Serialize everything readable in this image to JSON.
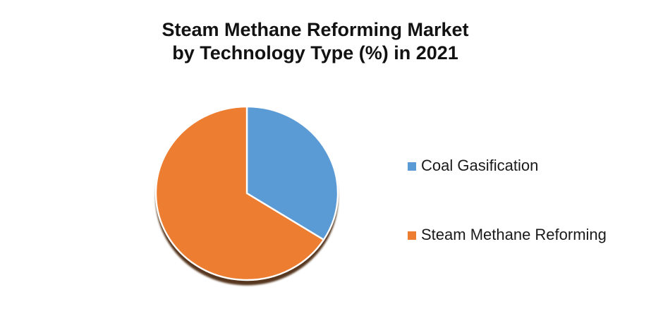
{
  "title": "Steam Methane Reforming Market\nby Technology Type (%) in 2021",
  "chart_data": {
    "type": "pie",
    "title": "Steam Methane Reforming Market by Technology Type (%) in 2021",
    "labels": [
      "Coal Gasification",
      "Steam Methane Reforming"
    ],
    "values": [
      34,
      66
    ],
    "unit": "%",
    "colors": [
      "#5B9BD5",
      "#ED7D31"
    ],
    "start_angle_deg": 0,
    "direction": "clockwise",
    "legend_position": "right",
    "slice_border_color": "#FFFFFF",
    "shadow_color": "#4A2507"
  },
  "legend": {
    "items": [
      {
        "label": "Coal Gasification",
        "color": "#5B9BD5"
      },
      {
        "label": "Steam Methane Reforming",
        "color": "#ED7D31"
      }
    ]
  }
}
